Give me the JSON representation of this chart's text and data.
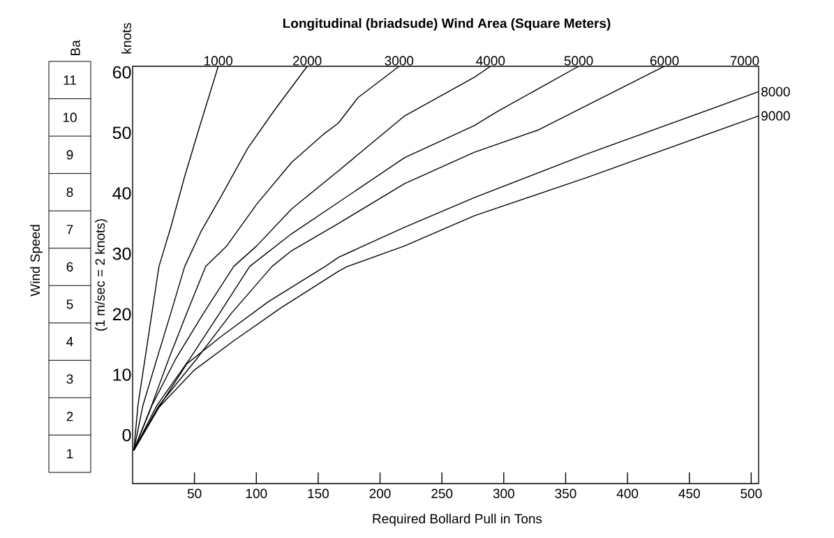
{
  "chart_data": {
    "type": "line",
    "title": "Longitudinal (briadsude) Wind Area (Square Meters)",
    "xlabel": "Required Bollard Pull in Tons",
    "xlim": [
      0,
      506
    ],
    "ylim": [
      -8,
      61
    ],
    "xticks": [
      50,
      100,
      150,
      200,
      250,
      300,
      350,
      400,
      450,
      500
    ],
    "yticks": [
      0,
      10,
      20,
      30,
      40,
      50,
      60
    ],
    "grid": false,
    "series": [
      {
        "name": "1000",
        "color": "#000000",
        "x": [
          1,
          4.3,
          10.0,
          15.6,
          21.3,
          30.9,
          42.1,
          53.4,
          69.2
        ],
        "values": [
          -2.5,
          4.9,
          12.6,
          20.2,
          27.9,
          34.4,
          42.8,
          50.5,
          61
        ]
      },
      {
        "name": "2000",
        "color": "#000000",
        "x": [
          1,
          8.3,
          19.6,
          30.9,
          42.1,
          55.1,
          72.1,
          92.9,
          113.8,
          141.1
        ],
        "values": [
          -2.5,
          4.9,
          12.6,
          20.2,
          27.9,
          33.6,
          39.7,
          47.4,
          53.5,
          61
        ]
      },
      {
        "name": "3000",
        "color": "#000000",
        "x": [
          1,
          13.9,
          29.2,
          43.8,
          59.1,
          76.1,
          100.3,
          128.5,
          153.9,
          166.3,
          182.1,
          215.4
        ],
        "values": [
          -2.5,
          4.1,
          12.6,
          20.2,
          27.9,
          31.3,
          38.2,
          45.1,
          49.7,
          51.6,
          55.8,
          61
        ]
      },
      {
        "name": "4000",
        "color": "#000000",
        "x": [
          1,
          15.6,
          34.8,
          57.4,
          81.7,
          100.3,
          128.5,
          166.3,
          219.9,
          276.3,
          289.3
        ],
        "values": [
          -2.5,
          4.9,
          12.6,
          20.2,
          27.9,
          31.3,
          37.4,
          43.7,
          52.8,
          59.2,
          61
        ]
      },
      {
        "name": "5000",
        "color": "#000000",
        "x": [
          1,
          19.6,
          46.1,
          70.4,
          94.6,
          128.5,
          166.3,
          219.9,
          276.3,
          295.5,
          360.5
        ],
        "values": [
          -2.5,
          4.9,
          12.6,
          20.2,
          27.9,
          33.3,
          38.5,
          45.9,
          51.2,
          53.6,
          61
        ]
      },
      {
        "name": "6000",
        "color": "#000000",
        "x": [
          1,
          21.3,
          51.7,
          80.0,
          112.7,
          128.5,
          166.3,
          219.9,
          276.3,
          328.3,
          429.9
        ],
        "values": [
          -2.5,
          4.9,
          12.6,
          20.2,
          27.9,
          30.5,
          35.0,
          41.6,
          46.8,
          50.5,
          61
        ]
      },
      {
        "name": "8000",
        "color": "#000000",
        "x": [
          1,
          19.6,
          43.8,
          72.1,
          109.9,
          155.6,
          166.3,
          219.9,
          276.3,
          367.2,
          506
        ],
        "values": [
          -2.5,
          4.1,
          11.8,
          16.4,
          22.1,
          27.9,
          29.4,
          34.4,
          39.3,
          46.5,
          56.8
        ]
      },
      {
        "name": "9000",
        "color": "#000000",
        "x": [
          1,
          21.3,
          49.5,
          81.7,
          119.5,
          166.3,
          173.6,
          219.9,
          276.3,
          367.2,
          506
        ],
        "values": [
          -2.5,
          4.6,
          10.7,
          15.6,
          21.0,
          27.1,
          27.9,
          31.3,
          36.3,
          42.6,
          52.8
        ]
      }
    ],
    "annotations": [
      "Wind Speed",
      "knots",
      "(1 m/sec = 2 knots)",
      "Ba",
      "11",
      "10",
      "9",
      "8",
      "7",
      "6",
      "5",
      "4",
      "3",
      "2",
      "1",
      "7000"
    ]
  }
}
